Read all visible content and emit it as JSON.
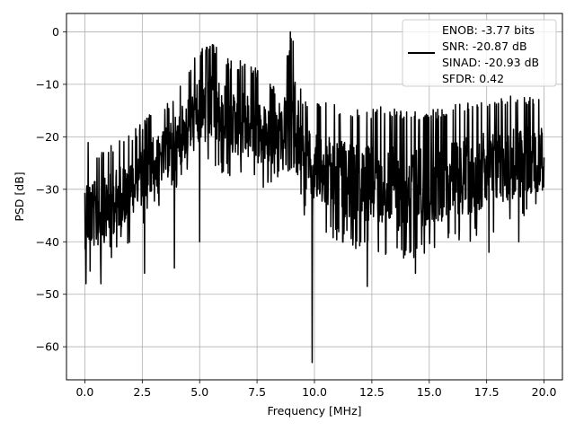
{
  "chart_data": {
    "type": "line",
    "title": "",
    "xlabel": "Frequency [MHz]",
    "ylabel": "PSD [dB]",
    "xlim": [
      -0.8,
      20.8
    ],
    "ylim": [
      -66.3,
      3.5
    ],
    "xticks": [
      0.0,
      2.5,
      5.0,
      7.5,
      10.0,
      12.5,
      15.0,
      17.5,
      20.0
    ],
    "xtick_labels": [
      "0.0",
      "2.5",
      "5.0",
      "7.5",
      "10.0",
      "12.5",
      "15.0",
      "17.5",
      "20.0"
    ],
    "yticks": [
      0,
      -10,
      -20,
      -30,
      -40,
      -50,
      -60
    ],
    "ytick_labels": [
      "0",
      "−10",
      "−20",
      "−30",
      "−40",
      "−50",
      "−60"
    ],
    "grid": true,
    "legend_position": "top-right",
    "series": [
      {
        "name": "ENOB: -3.77 bits\nSNR: -20.87 dB\nSINAD: -20.93 dB\nSFDR: 0.42",
        "color": "#000000",
        "x_range": [
          0.0,
          20.0
        ],
        "envelope": {
          "x": [
            0.0,
            0.5,
            1.0,
            1.5,
            2.0,
            2.5,
            3.0,
            3.5,
            4.0,
            4.5,
            5.0,
            5.5,
            6.0,
            6.5,
            7.0,
            7.5,
            8.0,
            8.5,
            9.0,
            9.25,
            9.5,
            10.0,
            11.0,
            12.0,
            13.0,
            14.0,
            15.0,
            16.0,
            17.0,
            18.0,
            19.0,
            20.0
          ],
          "upper": [
            -19,
            -23,
            -22,
            -20,
            -19,
            -17,
            -15,
            -14,
            -11,
            -7,
            -3,
            -2,
            -4,
            -6,
            -5,
            -7,
            -9,
            -12,
            0,
            -5,
            -13,
            -13,
            -14,
            -15,
            -14,
            -15,
            -15,
            -14,
            -13,
            -12,
            -12,
            -12
          ],
          "lower": [
            -47,
            -46,
            -44,
            -42,
            -40,
            -37,
            -34,
            -32,
            -30,
            -28,
            -27,
            -26,
            -27,
            -28,
            -29,
            -30,
            -30,
            -28,
            -26,
            -27,
            -35,
            -38,
            -40,
            -42,
            -43,
            -44,
            -42,
            -41,
            -40,
            -38,
            -37,
            -35
          ]
        },
        "notable_points": [
          {
            "x": 0.05,
            "y": -48
          },
          {
            "x": 0.7,
            "y": -48
          },
          {
            "x": 2.6,
            "y": -46
          },
          {
            "x": 3.9,
            "y": -45
          },
          {
            "x": 5.0,
            "y": -40
          },
          {
            "x": 8.95,
            "y": 0
          },
          {
            "x": 9.9,
            "y": -63
          },
          {
            "x": 12.3,
            "y": -48.5
          },
          {
            "x": 14.4,
            "y": -46
          },
          {
            "x": 17.6,
            "y": -42
          },
          {
            "x": 18.9,
            "y": -40
          }
        ]
      }
    ]
  }
}
